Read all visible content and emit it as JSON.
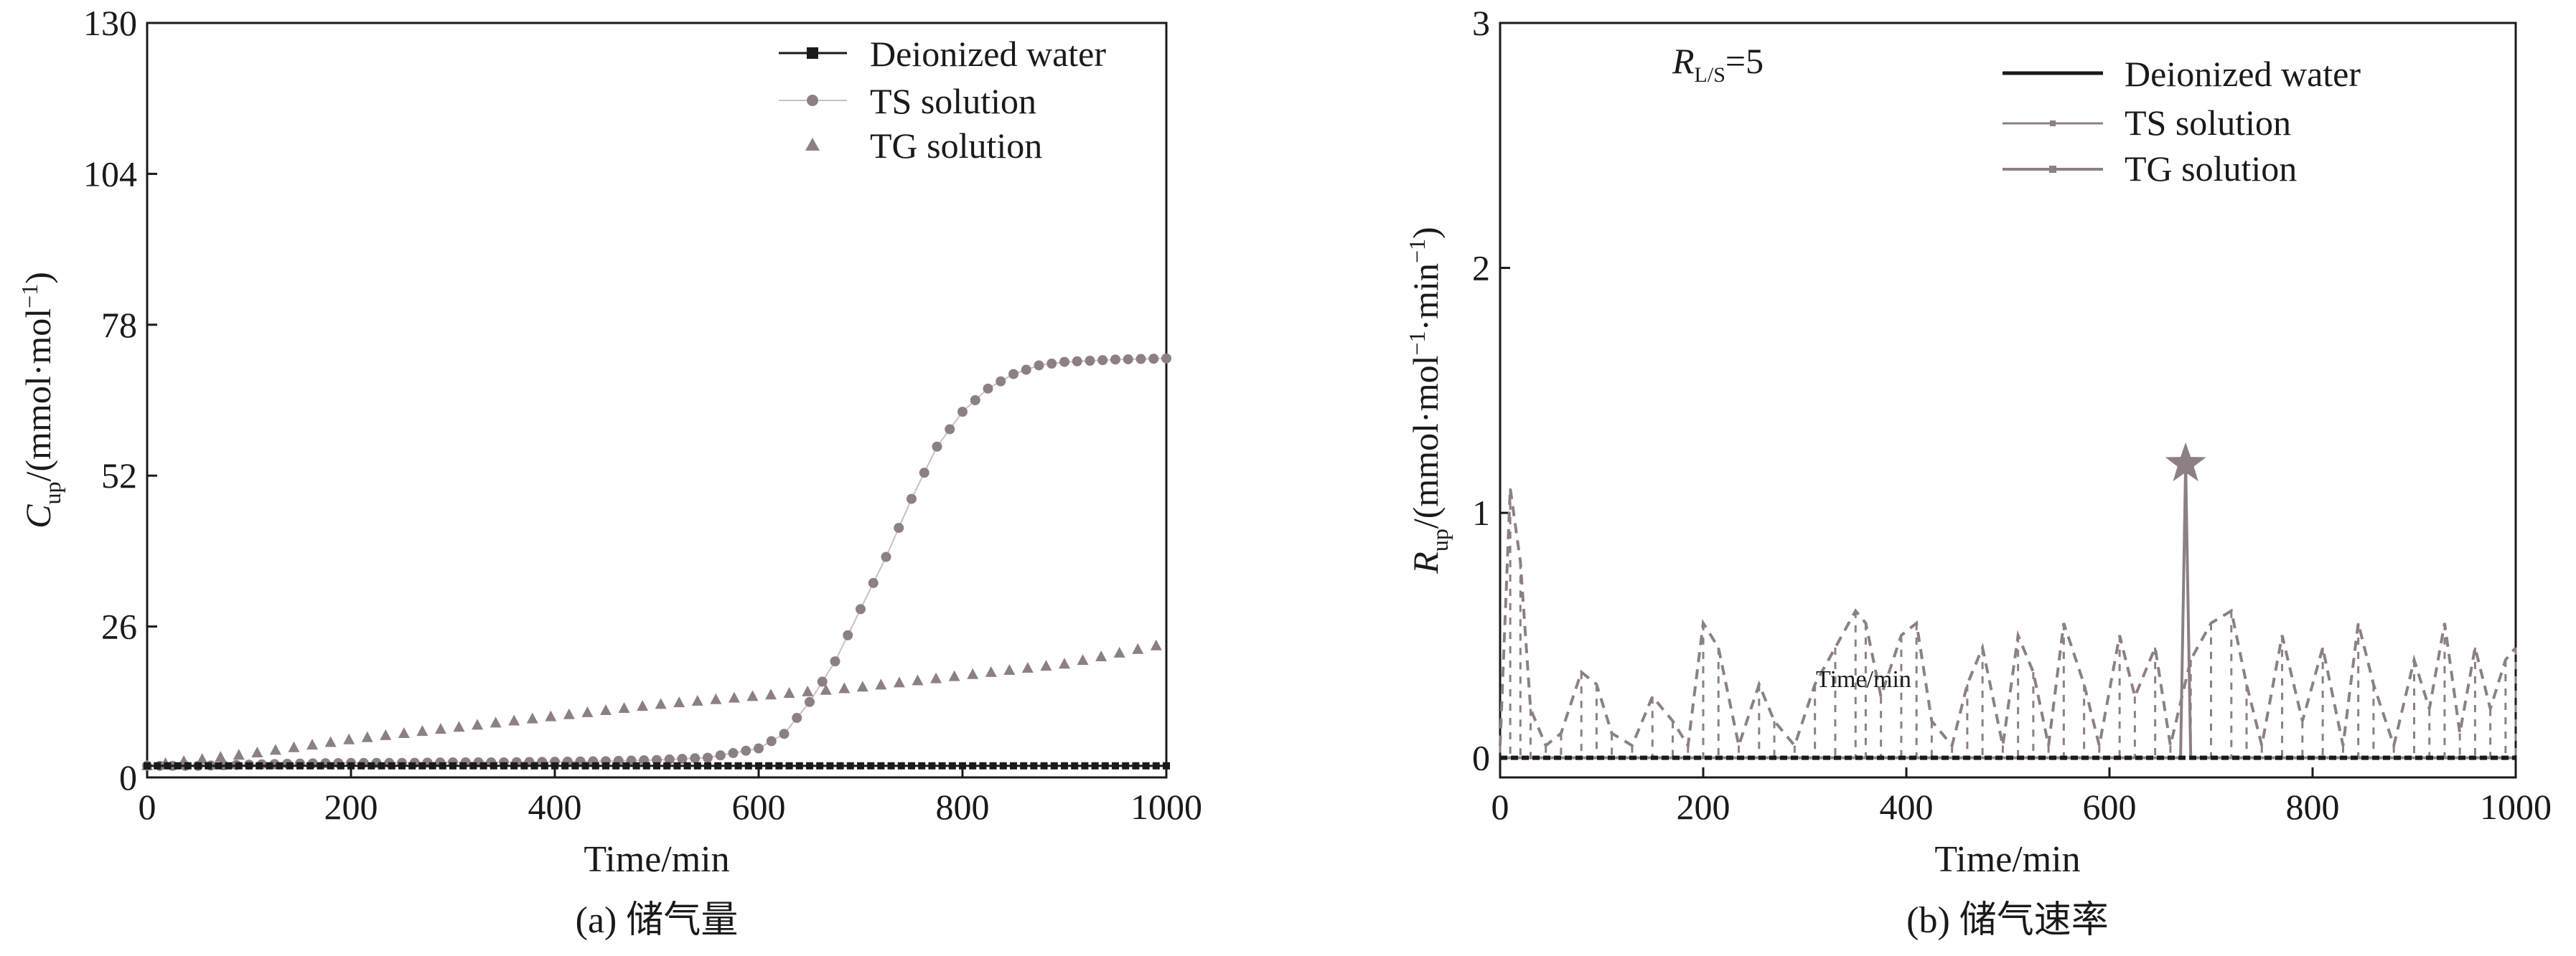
{
  "chart_data": [
    {
      "type": "scatter",
      "panel_label": "(a) 储气量",
      "xlabel": "Time/min",
      "ylabel_var": "C",
      "ylabel_sub": "up",
      "ylabel_unit": "/(mmol·mol",
      "ylabel_sup": "−1",
      "ylabel_close": ")",
      "xlim": [
        0,
        1000
      ],
      "ylim": [
        0,
        130
      ],
      "xticks": [
        0,
        200,
        400,
        600,
        800,
        1000
      ],
      "xtick_labels": [
        "0",
        "200",
        "400",
        "600",
        "800",
        "1000"
      ],
      "yticks": [
        0,
        26,
        52,
        78,
        104,
        130
      ],
      "ytick_labels": [
        "0",
        "26",
        "52",
        "78",
        "104",
        "130"
      ],
      "legend_position": "top-right",
      "series": [
        {
          "name": "Deionized water",
          "marker": "square",
          "color": "#1a1a1a",
          "x": [
            0,
            50,
            100,
            150,
            200,
            250,
            300,
            350,
            400,
            450,
            500,
            550,
            600,
            650,
            700,
            750,
            800,
            850,
            900,
            950,
            1000
          ],
          "y": [
            2,
            2,
            2,
            2,
            2,
            2,
            2,
            2,
            2,
            2,
            2,
            2,
            2,
            2,
            2,
            2,
            2,
            2,
            2,
            2,
            2
          ]
        },
        {
          "name": "TS solution",
          "marker": "circle",
          "color": "#8c8082",
          "x": [
            0,
            50,
            100,
            150,
            200,
            250,
            300,
            350,
            400,
            450,
            500,
            550,
            600,
            625,
            650,
            675,
            700,
            725,
            750,
            775,
            800,
            825,
            850,
            875,
            900,
            950,
            1000
          ],
          "y": [
            2,
            2,
            2.2,
            2.4,
            2.5,
            2.5,
            2.6,
            2.6,
            2.7,
            2.8,
            3,
            3.4,
            5,
            7.5,
            13,
            20,
            29,
            38,
            48,
            57,
            63,
            67,
            69.5,
            71,
            71.6,
            72,
            72.2
          ]
        },
        {
          "name": "TG solution",
          "marker": "triangle",
          "color": "#8c8082",
          "x": [
            0,
            100,
            200,
            300,
            400,
            500,
            600,
            700,
            800,
            900,
            1000
          ],
          "y": [
            2,
            4,
            6.5,
            8.5,
            10.5,
            12.5,
            14,
            15.5,
            17.5,
            19.5,
            23
          ]
        }
      ]
    },
    {
      "type": "line",
      "panel_label": "(b) 储气速率",
      "xlabel": "Time/min",
      "ylabel_var": "R",
      "ylabel_sub": "up",
      "ylabel_unit": "/(mmol·mol",
      "ylabel_sup": "−1",
      "ylabel_mid": "·min",
      "ylabel_sup2": "−1",
      "ylabel_close": ")",
      "xlim": [
        0,
        1000
      ],
      "ylim": [
        -0.08,
        3
      ],
      "xticks": [
        0,
        200,
        400,
        600,
        800,
        1000
      ],
      "xtick_labels": [
        "0",
        "200",
        "400",
        "600",
        "800",
        "1000"
      ],
      "yticks": [
        0,
        1,
        2,
        3
      ],
      "ytick_labels": [
        "0",
        "1",
        "2",
        "3"
      ],
      "annotation_var": "R",
      "annotation_sub": "L/S",
      "annotation_val": "=5",
      "inner_label": "Time/min",
      "legend_position": "top-right",
      "series": [
        {
          "name": "Deionized water",
          "color": "#1a1a1a",
          "style": "dashed",
          "x": [
            0,
            1000
          ],
          "y": [
            0,
            0
          ]
        },
        {
          "name": "TS solution",
          "color": "#8c8082",
          "style": "spike",
          "x": [
            0,
            660,
            670,
            675,
            680,
            690,
            1000
          ],
          "y": [
            0,
            0,
            0,
            1.2,
            0,
            0,
            0
          ]
        },
        {
          "name": "TG solution",
          "color": "#8c8082",
          "style": "dashed",
          "x": [
            0,
            10,
            20,
            30,
            45,
            60,
            80,
            95,
            110,
            130,
            150,
            170,
            185,
            200,
            215,
            235,
            255,
            270,
            290,
            310,
            330,
            350,
            360,
            375,
            395,
            410,
            425,
            445,
            460,
            475,
            495,
            510,
            525,
            540,
            555,
            575,
            590,
            610,
            625,
            645,
            660,
            680,
            700,
            720,
            735,
            750,
            770,
            790,
            810,
            830,
            845,
            860,
            880,
            900,
            915,
            930,
            945,
            960,
            975,
            990,
            1000
          ],
          "y": [
            0.05,
            1.1,
            0.8,
            0.2,
            0.05,
            0.1,
            0.35,
            0.3,
            0.1,
            0.05,
            0.25,
            0.15,
            0.05,
            0.55,
            0.45,
            0.05,
            0.3,
            0.15,
            0.05,
            0.3,
            0.45,
            0.6,
            0.55,
            0.25,
            0.5,
            0.55,
            0.15,
            0.05,
            0.3,
            0.45,
            0.05,
            0.5,
            0.35,
            0.05,
            0.55,
            0.3,
            0.05,
            0.5,
            0.25,
            0.45,
            0.05,
            0.4,
            0.55,
            0.6,
            0.3,
            0.05,
            0.5,
            0.15,
            0.45,
            0.05,
            0.55,
            0.3,
            0.05,
            0.4,
            0.2,
            0.55,
            0.1,
            0.45,
            0.2,
            0.4,
            0.45
          ]
        }
      ]
    }
  ]
}
